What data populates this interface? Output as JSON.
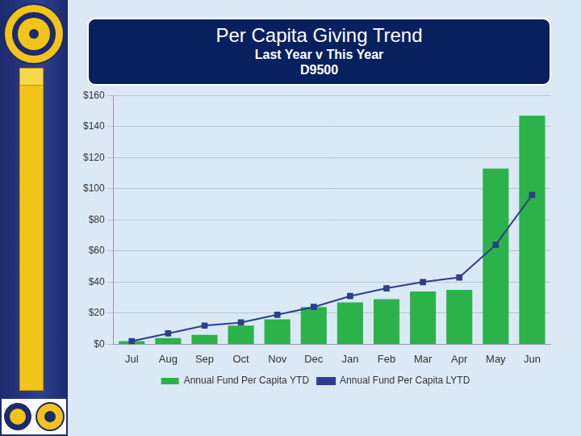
{
  "chart_data": {
    "type": "bar",
    "title": "Per Capita Giving Trend",
    "subtitle": [
      "Last Year v This Year",
      "D9500"
    ],
    "categories": [
      "Jul",
      "Aug",
      "Sep",
      "Oct",
      "Nov",
      "Dec",
      "Jan",
      "Feb",
      "Mar",
      "Apr",
      "May",
      "Jun"
    ],
    "series": [
      {
        "name": "Annual Fund Per Capita YTD",
        "type": "bar",
        "color": "#2bb34a",
        "values": [
          2,
          4,
          6,
          12,
          16,
          24,
          27,
          29,
          34,
          35,
          113,
          147
        ]
      },
      {
        "name": "Annual Fund Per Capita LYTD",
        "type": "line",
        "color": "#2e3d8f",
        "marker": "square",
        "values": [
          2,
          7,
          12,
          14,
          19,
          24,
          31,
          36,
          40,
          43,
          64,
          96
        ]
      }
    ],
    "ylim": [
      0,
      160
    ],
    "yticks": [
      {
        "value": 0,
        "label": "$0"
      },
      {
        "value": 20,
        "label": "$20"
      },
      {
        "value": 40,
        "label": "$40"
      },
      {
        "value": 60,
        "label": "$60"
      },
      {
        "value": 80,
        "label": "$80"
      },
      {
        "value": 100,
        "label": "$100"
      },
      {
        "value": 120,
        "label": "$120"
      },
      {
        "value": 140,
        "label": "$140"
      },
      {
        "value": 160,
        "label": "$160"
      }
    ],
    "grid": true,
    "legend": "bottom"
  }
}
